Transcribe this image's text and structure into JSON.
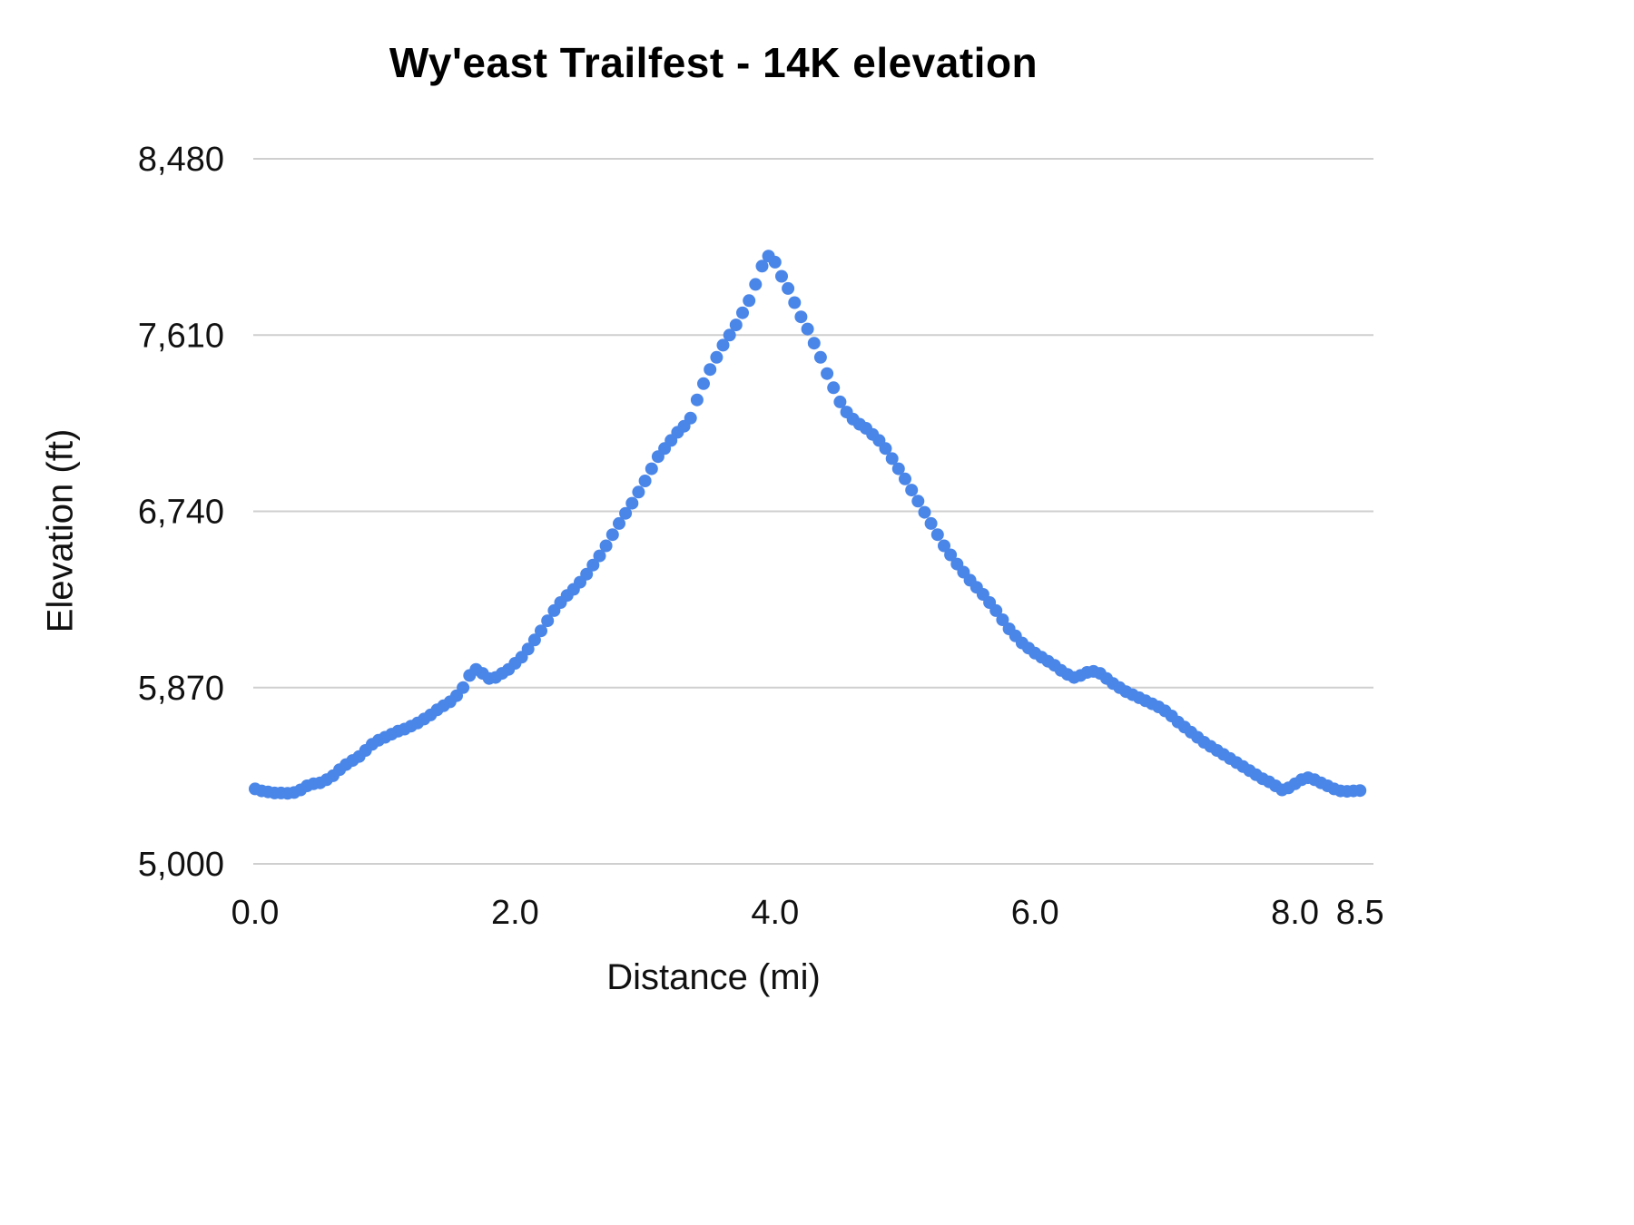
{
  "chart_data": {
    "type": "scatter",
    "title": "Wy'east Trailfest - 14K elevation",
    "xlabel": "Distance (mi)",
    "ylabel": "Elevation (ft)",
    "xlim": [
      0,
      8.6
    ],
    "ylim": [
      5000,
      8480
    ],
    "grid": "horizontal",
    "legend": "none",
    "point_color": "#4a86e8",
    "grid_color": "#cfcfcf",
    "x_ticks": {
      "values": [
        0.0,
        2.0,
        4.0,
        6.0,
        8.0,
        8.5
      ],
      "labels": [
        "0.0",
        "2.0",
        "4.0",
        "6.0",
        "8.0",
        "8.5"
      ]
    },
    "y_ticks": {
      "values": [
        8480,
        7610,
        6740,
        5870,
        5000
      ],
      "labels": [
        "8,480",
        "7,610",
        "6,740",
        "5,870",
        "5,000"
      ]
    },
    "series": [
      {
        "name": "elevation-profile",
        "points": [
          [
            0.0,
            5370
          ],
          [
            0.05,
            5360
          ],
          [
            0.1,
            5355
          ],
          [
            0.15,
            5350
          ],
          [
            0.2,
            5350
          ],
          [
            0.25,
            5348
          ],
          [
            0.3,
            5352
          ],
          [
            0.35,
            5365
          ],
          [
            0.4,
            5385
          ],
          [
            0.45,
            5395
          ],
          [
            0.5,
            5400
          ],
          [
            0.55,
            5415
          ],
          [
            0.6,
            5435
          ],
          [
            0.65,
            5465
          ],
          [
            0.7,
            5490
          ],
          [
            0.75,
            5510
          ],
          [
            0.8,
            5530
          ],
          [
            0.85,
            5560
          ],
          [
            0.9,
            5590
          ],
          [
            0.95,
            5610
          ],
          [
            1.0,
            5625
          ],
          [
            1.05,
            5640
          ],
          [
            1.1,
            5655
          ],
          [
            1.15,
            5665
          ],
          [
            1.2,
            5680
          ],
          [
            1.25,
            5695
          ],
          [
            1.3,
            5715
          ],
          [
            1.35,
            5735
          ],
          [
            1.4,
            5760
          ],
          [
            1.45,
            5780
          ],
          [
            1.5,
            5800
          ],
          [
            1.55,
            5830
          ],
          [
            1.6,
            5870
          ],
          [
            1.65,
            5930
          ],
          [
            1.7,
            5960
          ],
          [
            1.75,
            5940
          ],
          [
            1.8,
            5915
          ],
          [
            1.85,
            5920
          ],
          [
            1.9,
            5940
          ],
          [
            1.95,
            5960
          ],
          [
            2.0,
            5990
          ],
          [
            2.05,
            6020
          ],
          [
            2.1,
            6060
          ],
          [
            2.15,
            6105
          ],
          [
            2.2,
            6150
          ],
          [
            2.25,
            6200
          ],
          [
            2.3,
            6250
          ],
          [
            2.35,
            6290
          ],
          [
            2.4,
            6325
          ],
          [
            2.45,
            6355
          ],
          [
            2.5,
            6390
          ],
          [
            2.55,
            6430
          ],
          [
            2.6,
            6475
          ],
          [
            2.65,
            6520
          ],
          [
            2.7,
            6570
          ],
          [
            2.75,
            6625
          ],
          [
            2.8,
            6680
          ],
          [
            2.85,
            6730
          ],
          [
            2.9,
            6780
          ],
          [
            2.95,
            6835
          ],
          [
            3.0,
            6890
          ],
          [
            3.05,
            6950
          ],
          [
            3.1,
            7010
          ],
          [
            3.15,
            7050
          ],
          [
            3.2,
            7090
          ],
          [
            3.25,
            7130
          ],
          [
            3.3,
            7160
          ],
          [
            3.35,
            7200
          ],
          [
            3.4,
            7290
          ],
          [
            3.45,
            7370
          ],
          [
            3.5,
            7440
          ],
          [
            3.55,
            7500
          ],
          [
            3.6,
            7560
          ],
          [
            3.65,
            7610
          ],
          [
            3.7,
            7660
          ],
          [
            3.75,
            7720
          ],
          [
            3.8,
            7780
          ],
          [
            3.85,
            7860
          ],
          [
            3.9,
            7950
          ],
          [
            3.95,
            8000
          ],
          [
            4.0,
            7970
          ],
          [
            4.05,
            7900
          ],
          [
            4.1,
            7840
          ],
          [
            4.15,
            7770
          ],
          [
            4.2,
            7700
          ],
          [
            4.25,
            7640
          ],
          [
            4.3,
            7570
          ],
          [
            4.35,
            7500
          ],
          [
            4.4,
            7420
          ],
          [
            4.45,
            7350
          ],
          [
            4.5,
            7280
          ],
          [
            4.55,
            7230
          ],
          [
            4.6,
            7195
          ],
          [
            4.65,
            7170
          ],
          [
            4.7,
            7150
          ],
          [
            4.75,
            7120
          ],
          [
            4.8,
            7090
          ],
          [
            4.85,
            7050
          ],
          [
            4.9,
            7000
          ],
          [
            4.95,
            6950
          ],
          [
            5.0,
            6900
          ],
          [
            5.05,
            6845
          ],
          [
            5.1,
            6790
          ],
          [
            5.15,
            6735
          ],
          [
            5.2,
            6680
          ],
          [
            5.25,
            6625
          ],
          [
            5.3,
            6570
          ],
          [
            5.35,
            6525
          ],
          [
            5.4,
            6480
          ],
          [
            5.45,
            6440
          ],
          [
            5.5,
            6400
          ],
          [
            5.55,
            6365
          ],
          [
            5.6,
            6330
          ],
          [
            5.65,
            6290
          ],
          [
            5.7,
            6250
          ],
          [
            5.75,
            6205
          ],
          [
            5.8,
            6160
          ],
          [
            5.85,
            6125
          ],
          [
            5.9,
            6090
          ],
          [
            5.95,
            6065
          ],
          [
            6.0,
            6040
          ],
          [
            6.05,
            6020
          ],
          [
            6.1,
            6000
          ],
          [
            6.15,
            5980
          ],
          [
            6.2,
            5955
          ],
          [
            6.25,
            5935
          ],
          [
            6.3,
            5920
          ],
          [
            6.35,
            5930
          ],
          [
            6.4,
            5945
          ],
          [
            6.45,
            5950
          ],
          [
            6.5,
            5940
          ],
          [
            6.55,
            5915
          ],
          [
            6.6,
            5890
          ],
          [
            6.65,
            5870
          ],
          [
            6.7,
            5850
          ],
          [
            6.75,
            5835
          ],
          [
            6.8,
            5820
          ],
          [
            6.85,
            5805
          ],
          [
            6.9,
            5790
          ],
          [
            6.95,
            5775
          ],
          [
            7.0,
            5755
          ],
          [
            7.05,
            5730
          ],
          [
            7.1,
            5700
          ],
          [
            7.15,
            5675
          ],
          [
            7.2,
            5650
          ],
          [
            7.25,
            5625
          ],
          [
            7.3,
            5600
          ],
          [
            7.35,
            5580
          ],
          [
            7.4,
            5560
          ],
          [
            7.45,
            5540
          ],
          [
            7.5,
            5520
          ],
          [
            7.55,
            5500
          ],
          [
            7.6,
            5480
          ],
          [
            7.65,
            5460
          ],
          [
            7.7,
            5440
          ],
          [
            7.75,
            5420
          ],
          [
            7.8,
            5405
          ],
          [
            7.85,
            5385
          ],
          [
            7.9,
            5365
          ],
          [
            7.95,
            5375
          ],
          [
            8.0,
            5395
          ],
          [
            8.05,
            5415
          ],
          [
            8.1,
            5425
          ],
          [
            8.15,
            5415
          ],
          [
            8.2,
            5400
          ],
          [
            8.25,
            5385
          ],
          [
            8.3,
            5370
          ],
          [
            8.35,
            5360
          ],
          [
            8.4,
            5358
          ],
          [
            8.45,
            5360
          ],
          [
            8.5,
            5362
          ]
        ]
      }
    ]
  }
}
